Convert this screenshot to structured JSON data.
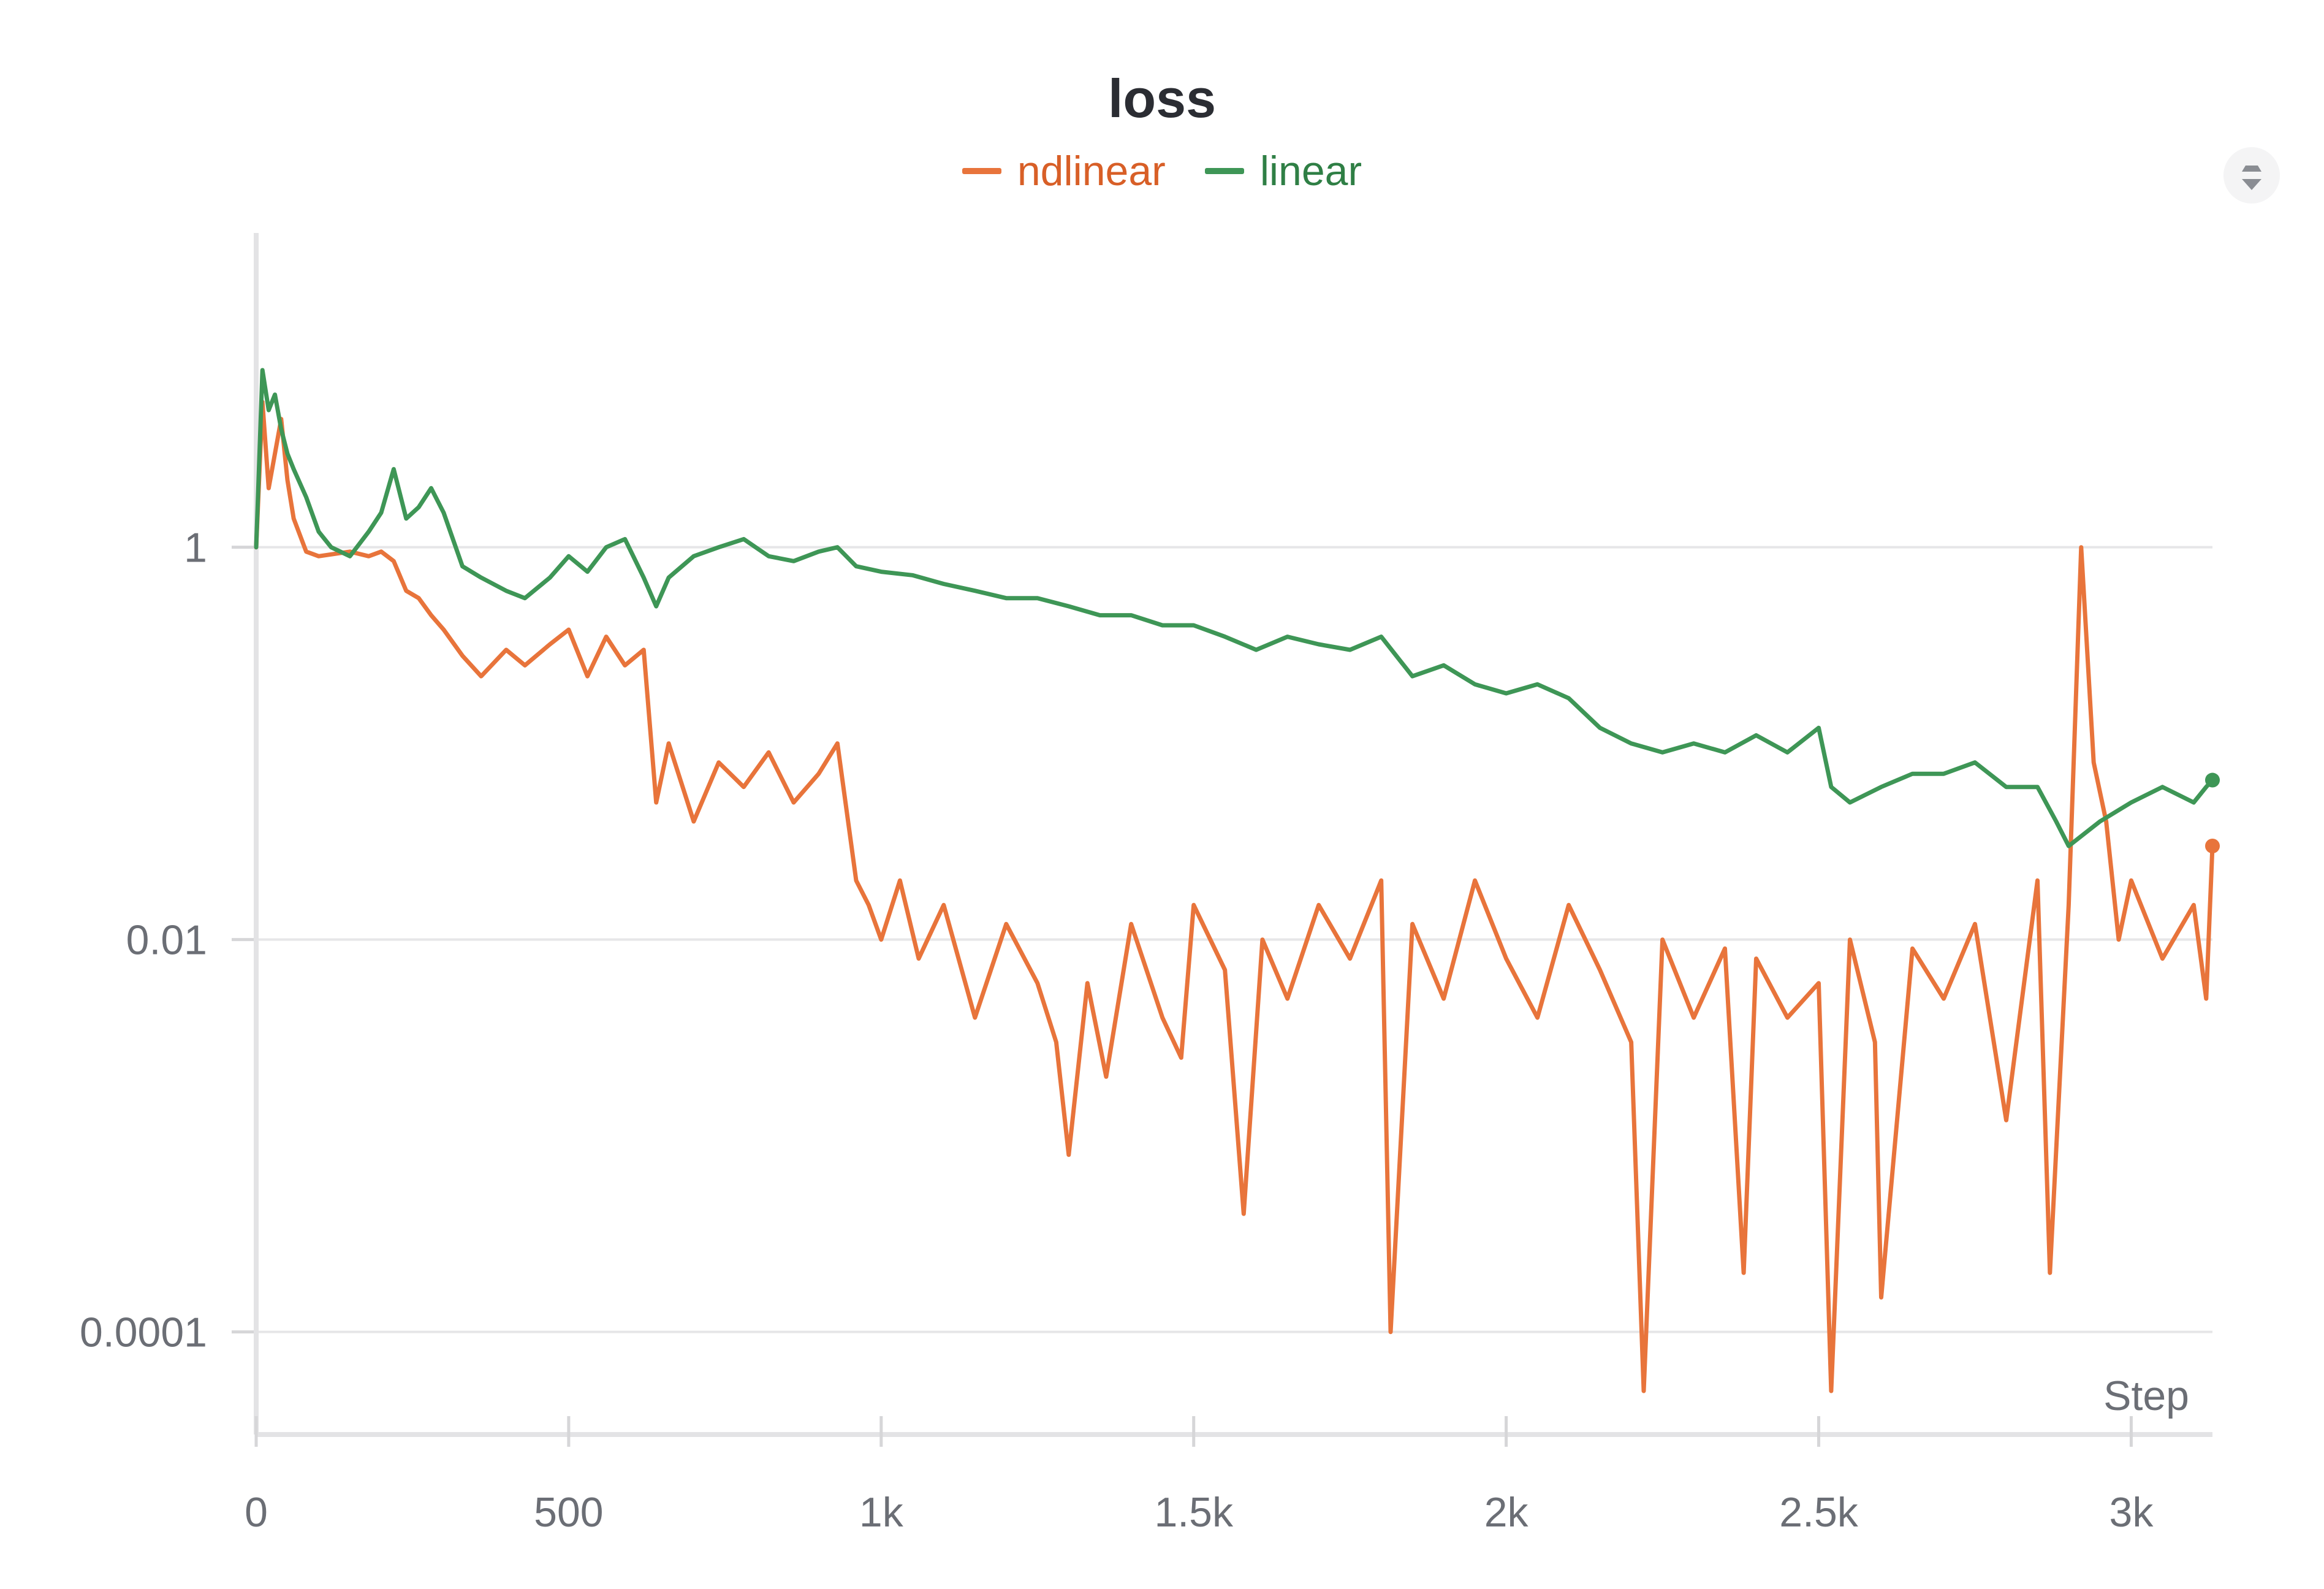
{
  "chart_data": {
    "type": "line",
    "title": "loss",
    "xlabel": "Step",
    "ylabel": "",
    "yscale": "log",
    "xlim": [
      0,
      3130
    ],
    "ylim": [
      3e-05,
      40
    ],
    "x_ticks": [
      {
        "value": 0,
        "label": "0"
      },
      {
        "value": 500,
        "label": "500"
      },
      {
        "value": 1000,
        "label": "1k"
      },
      {
        "value": 1500,
        "label": "1.5k"
      },
      {
        "value": 2000,
        "label": "2k"
      },
      {
        "value": 2500,
        "label": "2.5k"
      },
      {
        "value": 3000,
        "label": "3k"
      }
    ],
    "y_ticks": [
      {
        "value": 1,
        "label": "1"
      },
      {
        "value": 0.01,
        "label": "0.01"
      },
      {
        "value": 0.0001,
        "label": "0.0001"
      }
    ],
    "grid": true,
    "legend_position": "top-center",
    "series": [
      {
        "name": "ndlinear",
        "color": "#e8743b",
        "x": [
          0,
          10,
          20,
          30,
          40,
          50,
          60,
          80,
          100,
          120,
          150,
          180,
          200,
          220,
          240,
          260,
          280,
          300,
          330,
          360,
          400,
          430,
          470,
          500,
          530,
          560,
          590,
          620,
          640,
          660,
          700,
          740,
          780,
          820,
          860,
          900,
          930,
          960,
          980,
          1000,
          1030,
          1060,
          1100,
          1150,
          1200,
          1250,
          1280,
          1300,
          1330,
          1360,
          1400,
          1450,
          1480,
          1500,
          1550,
          1580,
          1610,
          1650,
          1700,
          1750,
          1800,
          1815,
          1850,
          1900,
          1950,
          2000,
          2050,
          2100,
          2150,
          2200,
          2220,
          2250,
          2300,
          2350,
          2380,
          2400,
          2450,
          2500,
          2520,
          2550,
          2590,
          2600,
          2650,
          2700,
          2750,
          2800,
          2850,
          2870,
          2900,
          2920,
          2940,
          2960,
          2980,
          3000,
          3050,
          3100,
          3120,
          3130
        ],
        "y": [
          1.0,
          5.5,
          2.0,
          3.0,
          4.5,
          2.2,
          1.4,
          0.95,
          0.9,
          0.92,
          0.95,
          0.9,
          0.95,
          0.85,
          0.6,
          0.55,
          0.45,
          0.38,
          0.28,
          0.22,
          0.3,
          0.25,
          0.32,
          0.38,
          0.22,
          0.35,
          0.25,
          0.3,
          0.05,
          0.1,
          0.04,
          0.08,
          0.06,
          0.09,
          0.05,
          0.07,
          0.1,
          0.02,
          0.015,
          0.01,
          0.02,
          0.008,
          0.015,
          0.004,
          0.012,
          0.006,
          0.003,
          0.0008,
          0.006,
          0.002,
          0.012,
          0.004,
          0.0025,
          0.015,
          0.007,
          0.0004,
          0.01,
          0.005,
          0.015,
          0.008,
          0.02,
          0.0001,
          0.012,
          0.005,
          0.02,
          0.008,
          0.004,
          0.015,
          0.007,
          0.003,
          5e-05,
          0.01,
          0.004,
          0.009,
          0.0002,
          0.008,
          0.004,
          0.006,
          5e-05,
          0.01,
          0.003,
          0.00015,
          0.009,
          0.005,
          0.012,
          0.0012,
          0.02,
          0.0002,
          0.015,
          1.0,
          0.08,
          0.04,
          0.01,
          0.02,
          0.008,
          0.015,
          0.005,
          0.03
        ]
      },
      {
        "name": "linear",
        "color": "#3e9656",
        "x": [
          0,
          10,
          20,
          30,
          40,
          50,
          60,
          80,
          100,
          120,
          150,
          180,
          200,
          220,
          240,
          260,
          280,
          300,
          330,
          360,
          400,
          430,
          470,
          500,
          530,
          560,
          590,
          620,
          640,
          660,
          700,
          740,
          780,
          820,
          860,
          900,
          930,
          960,
          1000,
          1050,
          1100,
          1150,
          1200,
          1250,
          1300,
          1350,
          1400,
          1450,
          1500,
          1550,
          1600,
          1650,
          1700,
          1750,
          1800,
          1850,
          1900,
          1950,
          2000,
          2050,
          2100,
          2150,
          2200,
          2250,
          2300,
          2350,
          2400,
          2450,
          2500,
          2520,
          2550,
          2600,
          2650,
          2700,
          2750,
          2800,
          2850,
          2880,
          2900,
          2950,
          3000,
          3050,
          3100,
          3120,
          3130
        ],
        "y": [
          1.0,
          8.0,
          5.0,
          6.0,
          4.0,
          3.0,
          2.5,
          1.8,
          1.2,
          1.0,
          0.9,
          1.2,
          1.5,
          2.5,
          1.4,
          1.6,
          2.0,
          1.5,
          0.8,
          0.7,
          0.6,
          0.55,
          0.7,
          0.9,
          0.75,
          1.0,
          1.1,
          0.7,
          0.5,
          0.7,
          0.9,
          1.0,
          1.1,
          0.9,
          0.85,
          0.95,
          1.0,
          0.8,
          0.75,
          0.72,
          0.65,
          0.6,
          0.55,
          0.55,
          0.5,
          0.45,
          0.45,
          0.4,
          0.4,
          0.35,
          0.3,
          0.35,
          0.32,
          0.3,
          0.35,
          0.22,
          0.25,
          0.2,
          0.18,
          0.2,
          0.17,
          0.12,
          0.1,
          0.09,
          0.1,
          0.09,
          0.11,
          0.09,
          0.12,
          0.06,
          0.05,
          0.06,
          0.07,
          0.07,
          0.08,
          0.06,
          0.06,
          0.04,
          0.03,
          0.04,
          0.05,
          0.06,
          0.05,
          0.06,
          0.065
        ]
      }
    ]
  }
}
